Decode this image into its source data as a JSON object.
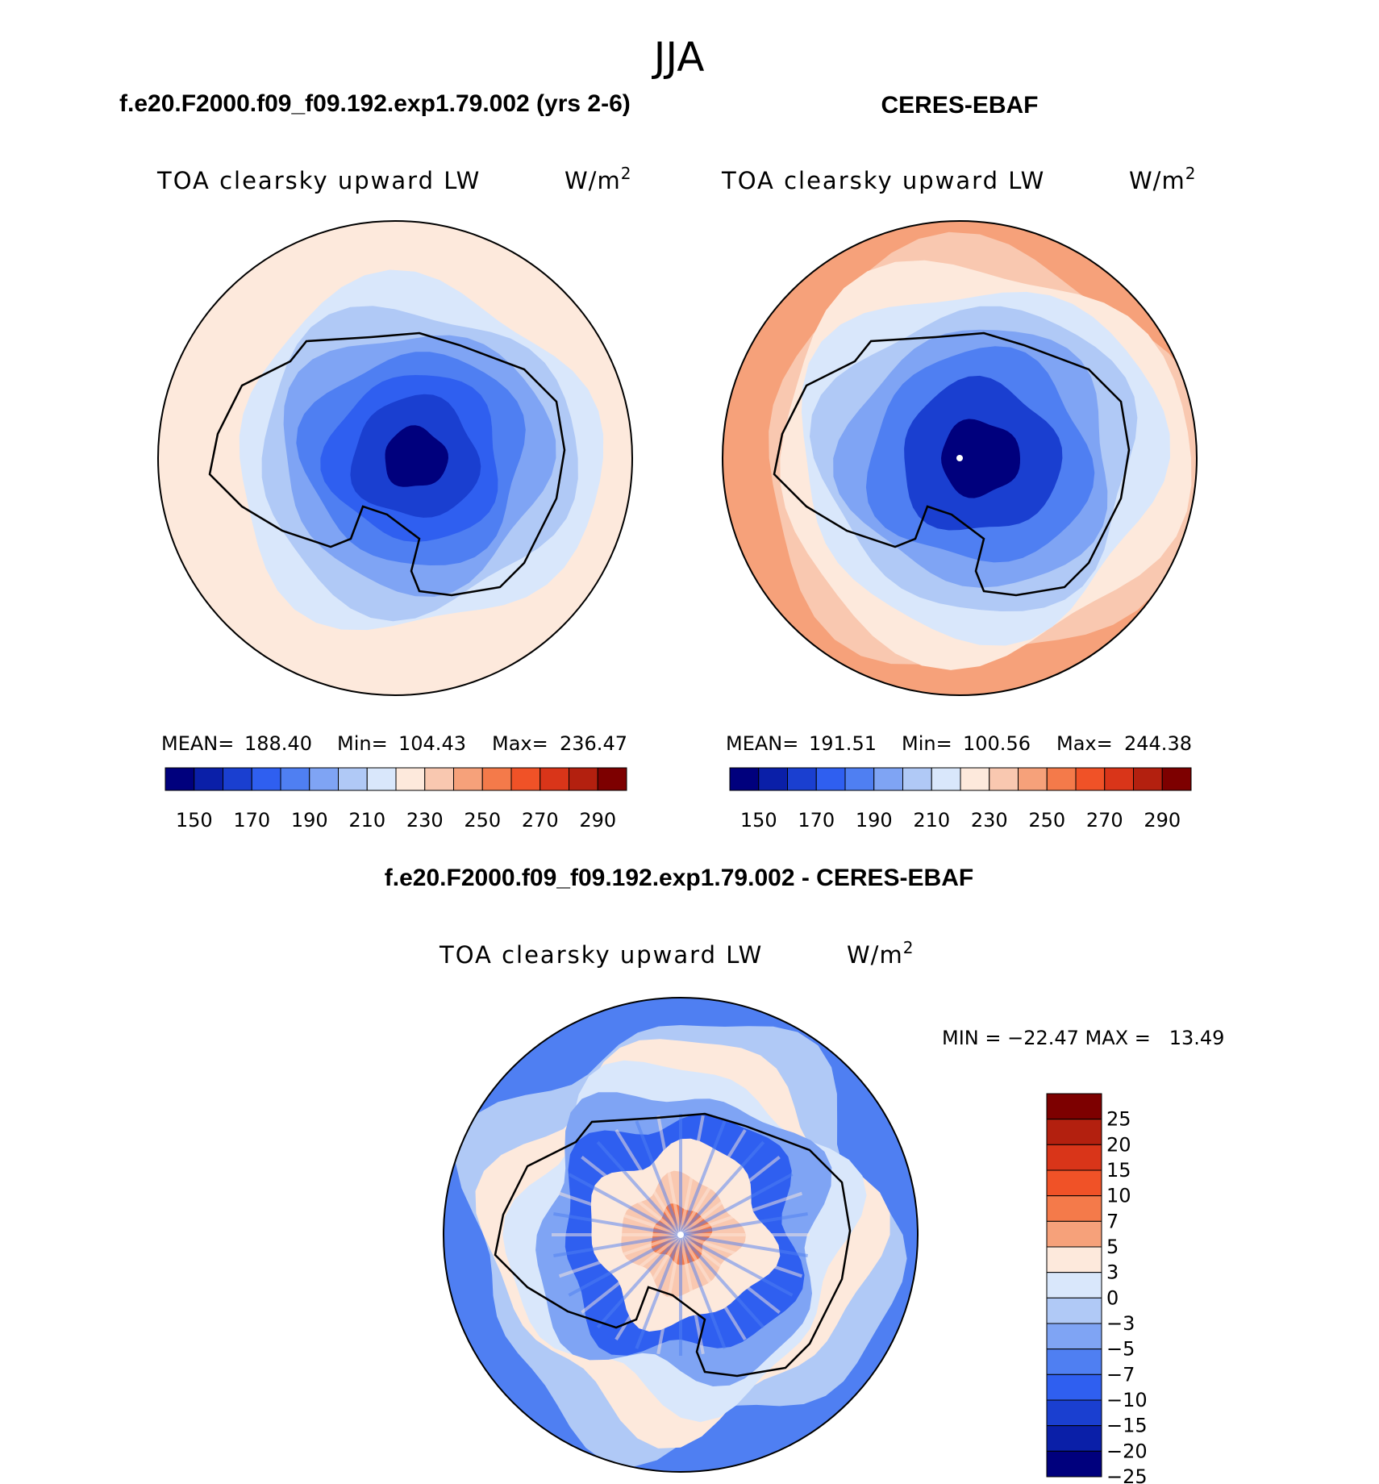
{
  "page_title": "JJA",
  "chart_data": [
    {
      "type": "polar-contour-map",
      "title": "f.e20.F2000.f09_f09.192.exp1.79.002 (yrs 2-6)",
      "variable": "TOA clearsky upward LW",
      "units_base": "W/m",
      "units_exp": "2",
      "stats": {
        "mean_label": "MEAN=",
        "mean": "188.40",
        "min_label": "Min=",
        "min": "104.43",
        "max_label": "Max=",
        "max": "236.47"
      },
      "colorbar_ticks": [
        "150",
        "170",
        "190",
        "210",
        "230",
        "250",
        "270",
        "290"
      ],
      "colorbar_colors": [
        "#00007d",
        "#0a1fa8",
        "#1a3fd0",
        "#2f5ff0",
        "#4f7ff2",
        "#7fa4f4",
        "#b0c9f6",
        "#d9e7fb",
        "#fde9dc",
        "#f9c8b0",
        "#f6a17a",
        "#f47a4a",
        "#f05227",
        "#d93519",
        "#b3200f",
        "#7d0000"
      ],
      "contour_levels": [
        {
          "value": 232,
          "color": "#fde9dc"
        },
        {
          "value": 215,
          "color": "#d9e7fb"
        },
        {
          "value": 200,
          "color": "#b0c9f6"
        },
        {
          "value": 185,
          "color": "#7fa4f4"
        },
        {
          "value": 170,
          "color": "#4f7ff2"
        },
        {
          "value": 155,
          "color": "#2f5ff0"
        },
        {
          "value": 140,
          "color": "#1a3fd0"
        },
        {
          "value": 120,
          "color": "#00007d"
        }
      ]
    },
    {
      "type": "polar-contour-map",
      "title": "CERES-EBAF",
      "variable": "TOA clearsky upward LW",
      "units_base": "W/m",
      "units_exp": "2",
      "stats": {
        "mean_label": "MEAN=",
        "mean": "191.51",
        "min_label": "Min=",
        "min": "100.56",
        "max_label": "Max=",
        "max": "244.38"
      },
      "colorbar_ticks": [
        "150",
        "170",
        "190",
        "210",
        "230",
        "250",
        "270",
        "290"
      ],
      "colorbar_colors": [
        "#00007d",
        "#0a1fa8",
        "#1a3fd0",
        "#2f5ff0",
        "#4f7ff2",
        "#7fa4f4",
        "#b0c9f6",
        "#d9e7fb",
        "#fde9dc",
        "#f9c8b0",
        "#f6a17a",
        "#f47a4a",
        "#f05227",
        "#d93519",
        "#b3200f",
        "#7d0000"
      ],
      "contour_levels": [
        {
          "value": 244,
          "color": "#f6a17a"
        },
        {
          "value": 238,
          "color": "#f9c8b0"
        },
        {
          "value": 230,
          "color": "#fde9dc"
        },
        {
          "value": 215,
          "color": "#d9e7fb"
        },
        {
          "value": 200,
          "color": "#b0c9f6"
        },
        {
          "value": 185,
          "color": "#7fa4f4"
        },
        {
          "value": 170,
          "color": "#4f7ff2"
        },
        {
          "value": 150,
          "color": "#1a3fd0"
        },
        {
          "value": 125,
          "color": "#00007d"
        }
      ]
    },
    {
      "type": "polar-contour-map",
      "title": "f.e20.F2000.f09_f09.192.exp1.79.002 - CERES-EBAF",
      "variable": "TOA clearsky upward LW",
      "units_base": "W/m",
      "units_exp": "2",
      "stats_text": "MIN = −22.47 MAX =   13.49",
      "min": -22.47,
      "max": 13.49,
      "colorbar_ticks": [
        "25",
        "20",
        "15",
        "10",
        "7",
        "5",
        "3",
        "0",
        "−3",
        "−5",
        "−7",
        "−10",
        "−15",
        "−20",
        "−25"
      ],
      "colorbar_colors": [
        "#7d0000",
        "#b3200f",
        "#d93519",
        "#f05227",
        "#f47a4a",
        "#f6a17a",
        "#fde9dc",
        "#d9e7fb",
        "#b0c9f6",
        "#7fa4f4",
        "#4f7ff2",
        "#2f5ff0",
        "#1a3fd0",
        "#0a1fa8",
        "#00007d"
      ]
    }
  ]
}
